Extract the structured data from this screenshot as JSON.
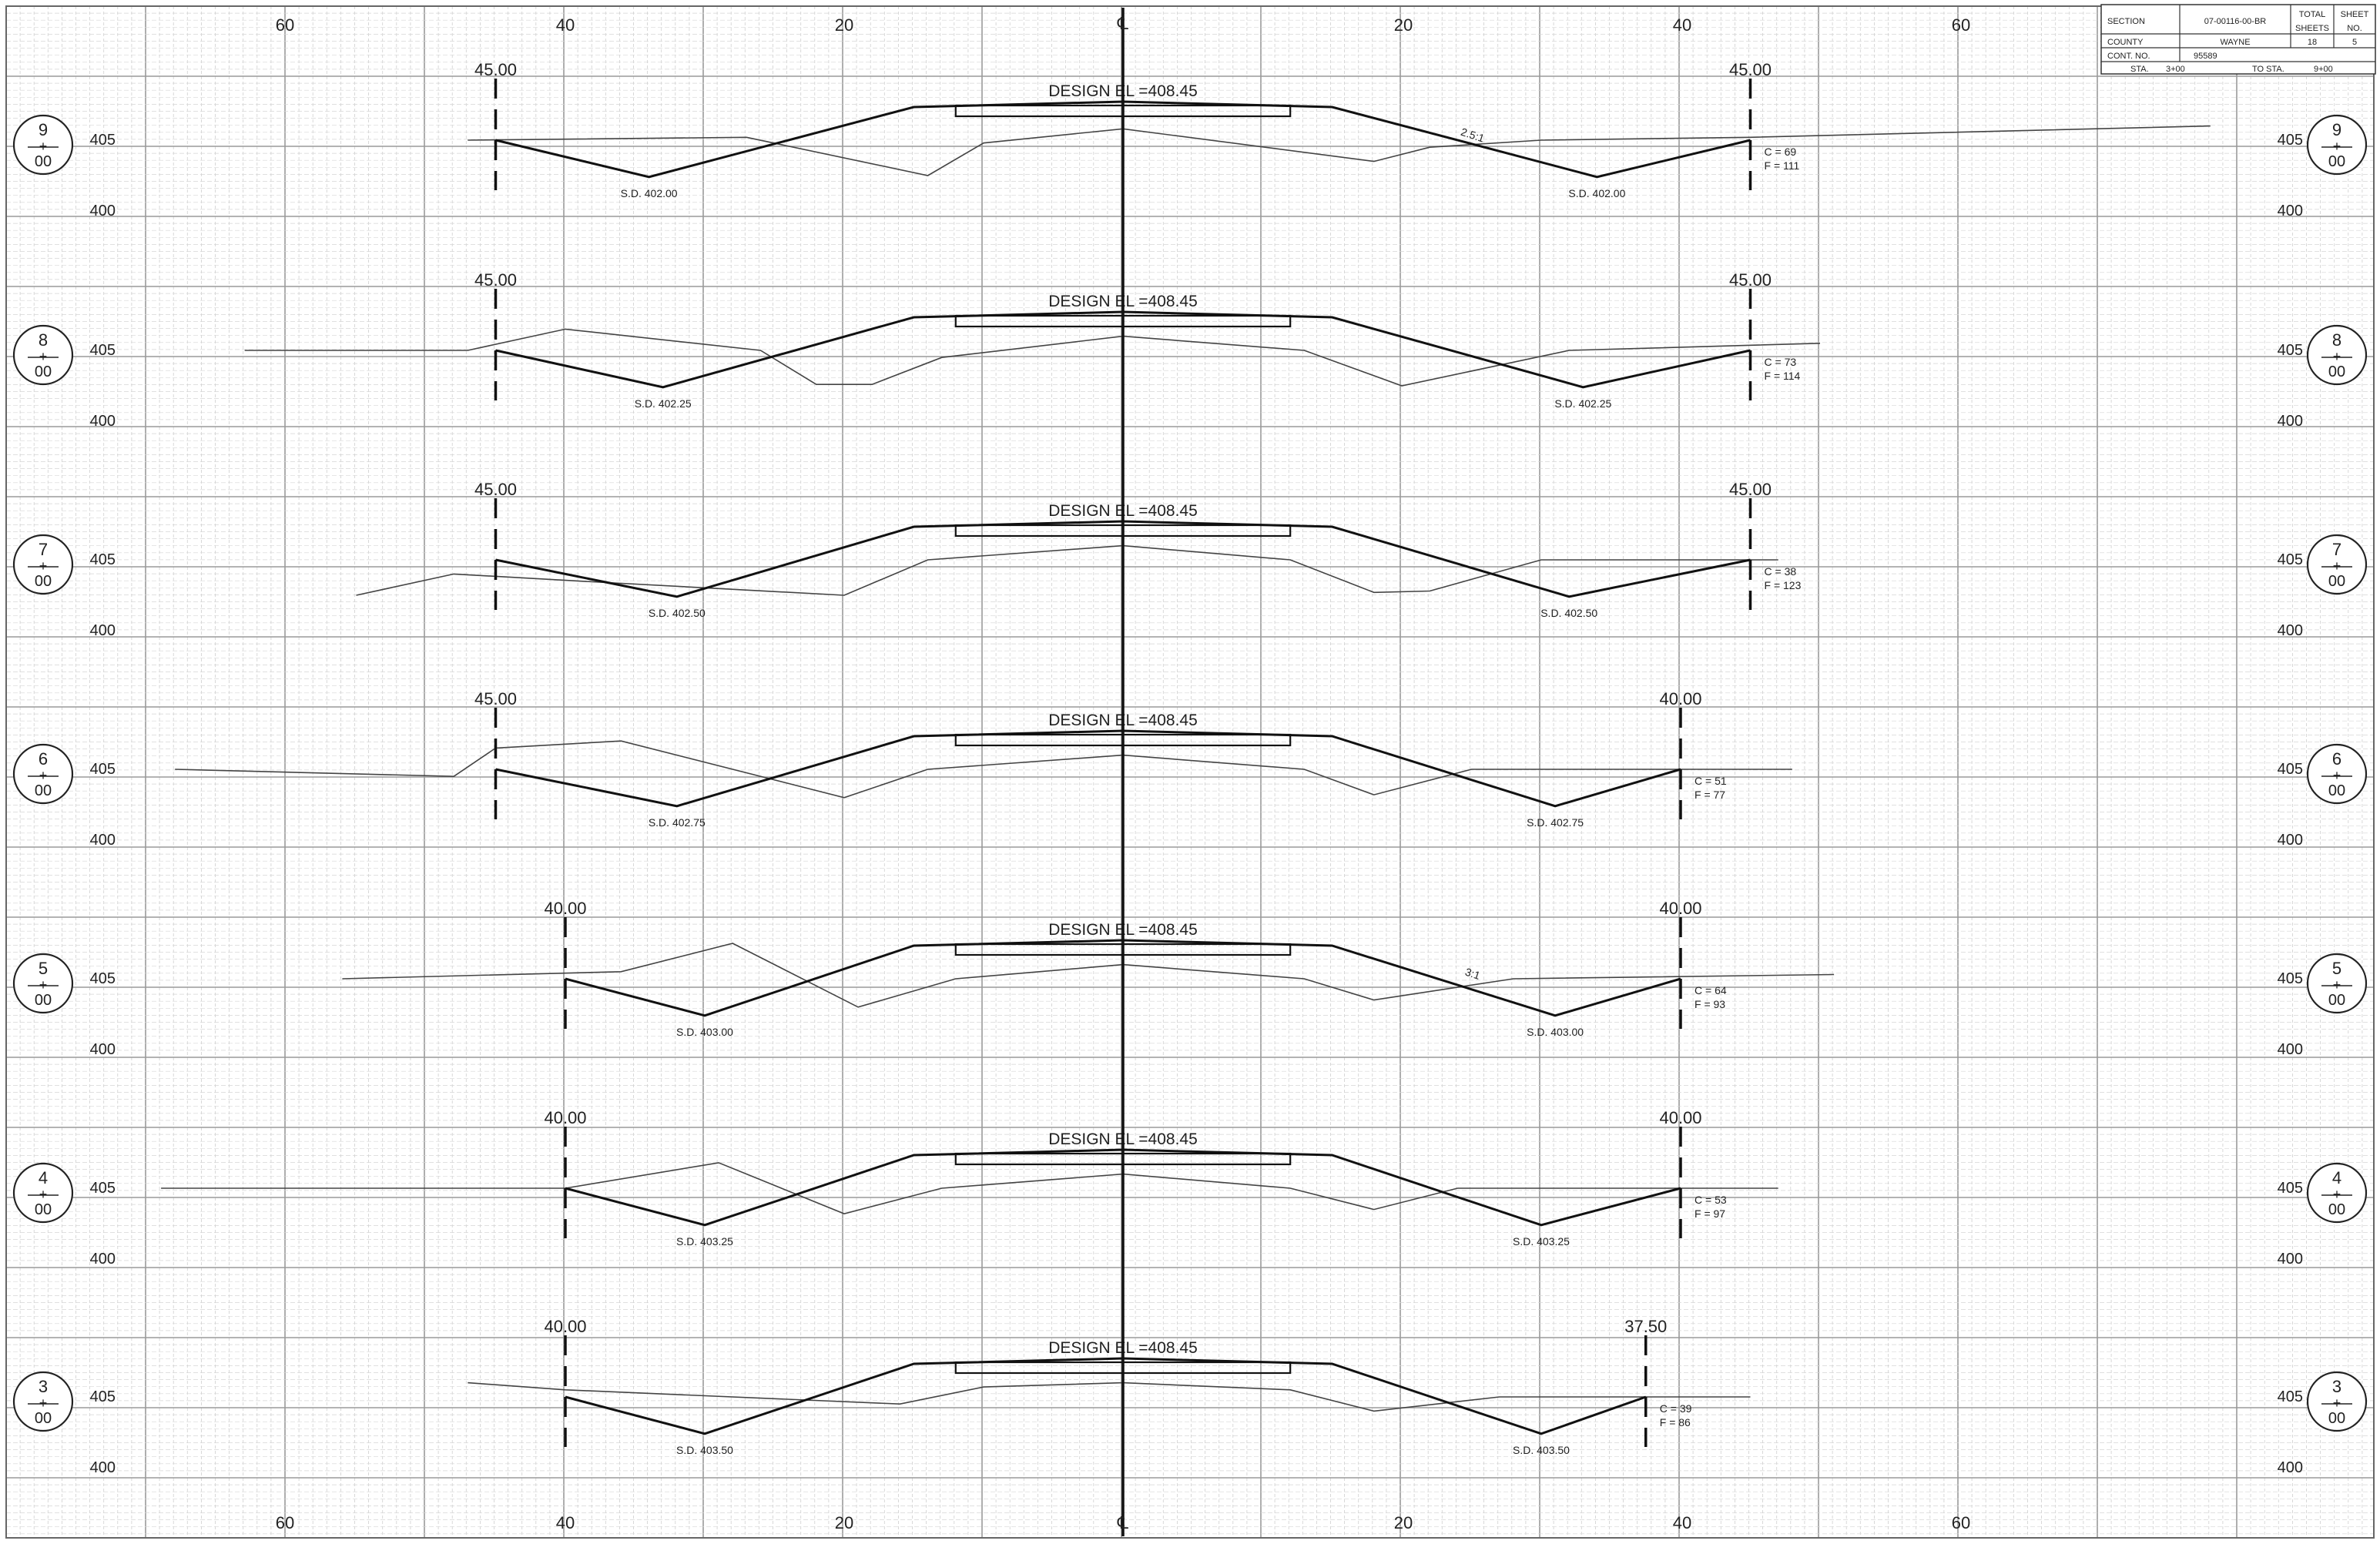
{
  "offset_labels": {
    "top": [
      "60",
      "40",
      "20",
      "20",
      "40",
      "60"
    ],
    "bottom": [
      "60",
      "40",
      "20",
      "20",
      "40",
      "60"
    ],
    "centerline": "℄"
  },
  "title_block": {
    "section_label": "SECTION",
    "section_value": "07-00116-00-BR",
    "total_label_1": "TOTAL",
    "total_label_2": "SHEETS",
    "sheet_label_1": "SHEET",
    "sheet_label_2": "NO.",
    "county_label": "COUNTY",
    "county_value": "WAYNE",
    "total_value": "18",
    "sheet_value": "5",
    "cont_label": "CONT. NO.",
    "cont_value": "95589",
    "sta_label": "STA.",
    "sta_value": "3+00",
    "to_sta_label": "TO STA.",
    "to_sta_value": "9+00"
  },
  "sections": [
    {
      "station_top": "9",
      "station_mid": "+",
      "station_bot": "00",
      "elev_high": "405",
      "elev_low": "400",
      "design_label": "DESIGN EL =408.45",
      "left_width": "45.00",
      "right_width": "45.00",
      "left_ditch": "S.D. 402.00",
      "right_ditch": "S.D. 402.00",
      "cut": "C = 69",
      "fill": "F = 111",
      "slope_note": "2.5:1"
    },
    {
      "station_top": "8",
      "station_mid": "+",
      "station_bot": "00",
      "elev_high": "405",
      "elev_low": "400",
      "design_label": "DESIGN EL =408.45",
      "left_width": "45.00",
      "right_width": "45.00",
      "left_ditch": "S.D. 402.25",
      "right_ditch": "S.D. 402.25",
      "cut": "C = 73",
      "fill": "F = 114",
      "slope_note": ""
    },
    {
      "station_top": "7",
      "station_mid": "+",
      "station_bot": "00",
      "elev_high": "405",
      "elev_low": "400",
      "design_label": "DESIGN EL =408.45",
      "left_width": "45.00",
      "right_width": "45.00",
      "left_ditch": "S.D. 402.50",
      "right_ditch": "S.D. 402.50",
      "cut": "C = 38",
      "fill": "F = 123",
      "slope_note": ""
    },
    {
      "station_top": "6",
      "station_mid": "+",
      "station_bot": "00",
      "elev_high": "405",
      "elev_low": "400",
      "design_label": "DESIGN EL =408.45",
      "left_width": "45.00",
      "right_width": "40.00",
      "left_ditch": "S.D. 402.75",
      "right_ditch": "S.D. 402.75",
      "cut": "C = 51",
      "fill": "F = 77",
      "slope_note": ""
    },
    {
      "station_top": "5",
      "station_mid": "+",
      "station_bot": "00",
      "elev_high": "405",
      "elev_low": "400",
      "design_label": "DESIGN EL =408.45",
      "left_width": "40.00",
      "right_width": "40.00",
      "left_ditch": "S.D. 403.00",
      "right_ditch": "S.D. 403.00",
      "cut": "C = 64",
      "fill": "F = 93",
      "slope_note": "3:1"
    },
    {
      "station_top": "4",
      "station_mid": "+",
      "station_bot": "00",
      "elev_high": "405",
      "elev_low": "400",
      "design_label": "DESIGN EL =408.45",
      "left_width": "40.00",
      "right_width": "40.00",
      "left_ditch": "S.D. 403.25",
      "right_ditch": "S.D. 403.25",
      "cut": "C = 53",
      "fill": "F = 97",
      "slope_note": ""
    },
    {
      "station_top": "3",
      "station_mid": "+",
      "station_bot": "00",
      "elev_high": "405",
      "elev_low": "400",
      "design_label": "DESIGN EL =408.45",
      "left_width": "40.00",
      "right_width": "37.50",
      "left_ditch": "S.D. 403.50",
      "right_ditch": "S.D. 403.50",
      "cut": "C = 39",
      "fill": "F = 86",
      "slope_note": ""
    }
  ]
}
